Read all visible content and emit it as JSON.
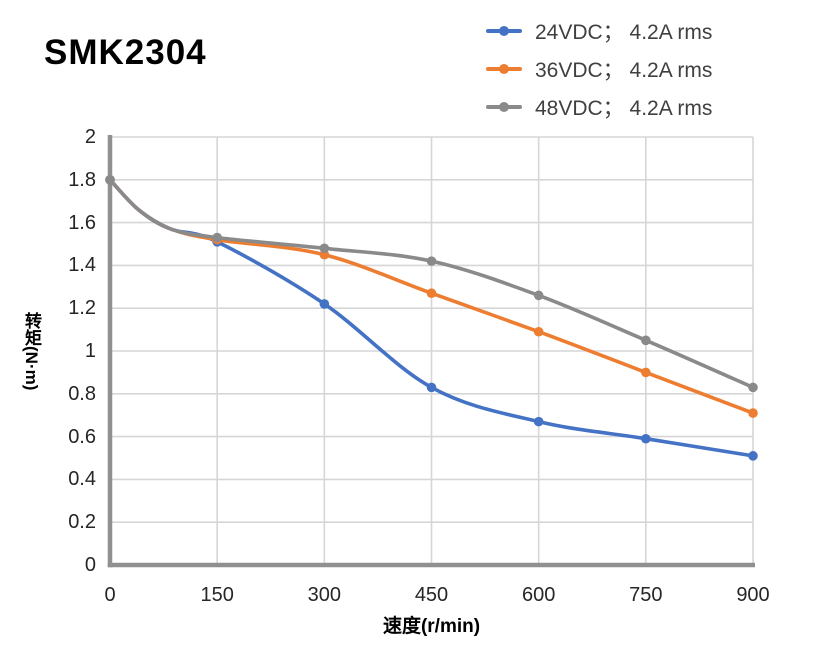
{
  "chart_data": {
    "type": "line",
    "title": "SMK2304",
    "xlabel": "速度(r/min)",
    "ylabel": "转矩(N·m)",
    "x": [
      0,
      150,
      300,
      450,
      600,
      750,
      900
    ],
    "xtick_labels": [
      "0",
      "150",
      "300",
      "450",
      "600",
      "750",
      "900"
    ],
    "ytick_labels": [
      "2",
      "1.8",
      "1.6",
      "1.4",
      "1.2",
      "1",
      "0.8",
      "0.6",
      "0.4",
      "0.2",
      "0"
    ],
    "xlim": [
      0,
      900
    ],
    "ylim": [
      0,
      2
    ],
    "grid": true,
    "line_style": "smooth",
    "marker": "circle",
    "legend_position": "top-right",
    "series": [
      {
        "name": "24VDC； 4.2A rms",
        "key": "24vdc",
        "color": "#4472C4",
        "values": [
          1.8,
          1.51,
          1.22,
          0.83,
          0.67,
          0.59,
          0.51
        ]
      },
      {
        "name": "36VDC； 4.2A rms",
        "key": "36vdc",
        "color": "#ED7D31",
        "values": [
          1.8,
          1.52,
          1.45,
          1.27,
          1.09,
          0.9,
          0.71
        ]
      },
      {
        "name": "48VDC； 4.2A rms",
        "key": "48vdc",
        "color": "#8A8A8A",
        "values": [
          1.8,
          1.53,
          1.48,
          1.42,
          1.26,
          1.05,
          0.83
        ]
      }
    ],
    "curve_shape_helpers": [
      {
        "x": 40,
        "y": 1.66
      },
      {
        "x": 85,
        "y": 1.57
      }
    ],
    "colors": {
      "gridline": "#D6D6D9",
      "axis_line": "#909090",
      "tick_text": "#262626",
      "legend_text": "#404040",
      "title_text": "#000000",
      "background": "#FFFFFF"
    }
  }
}
